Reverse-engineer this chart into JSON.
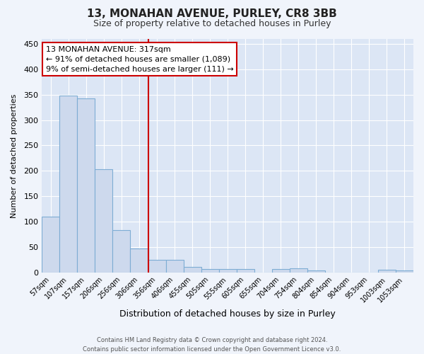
{
  "title1": "13, MONAHAN AVENUE, PURLEY, CR8 3BB",
  "title2": "Size of property relative to detached houses in Purley",
  "xlabel": "Distribution of detached houses by size in Purley",
  "ylabel": "Number of detached properties",
  "categories": [
    "57sqm",
    "107sqm",
    "157sqm",
    "206sqm",
    "256sqm",
    "306sqm",
    "356sqm",
    "406sqm",
    "455sqm",
    "505sqm",
    "555sqm",
    "605sqm",
    "655sqm",
    "704sqm",
    "754sqm",
    "804sqm",
    "854sqm",
    "904sqm",
    "953sqm",
    "1003sqm",
    "1053sqm"
  ],
  "values": [
    110,
    349,
    343,
    203,
    83,
    47,
    25,
    24,
    11,
    7,
    7,
    6,
    0,
    6,
    8,
    4,
    0,
    0,
    0,
    5,
    4
  ],
  "bar_color": "#cdd9ed",
  "bar_edge_color": "#7eadd4",
  "plot_bg_color": "#dce6f5",
  "fig_bg_color": "#f0f4fb",
  "grid_color": "#ffffff",
  "vline_x": 5.5,
  "vline_color": "#cc0000",
  "annotation_line1": "13 MONAHAN AVENUE: 317sqm",
  "annotation_line2": "← 91% of detached houses are smaller (1,089)",
  "annotation_line3": "9% of semi-detached houses are larger (111) →",
  "annotation_box_color": "#ffffff",
  "annotation_box_edge": "#cc0000",
  "footer": "Contains HM Land Registry data © Crown copyright and database right 2024.\nContains public sector information licensed under the Open Government Licence v3.0.",
  "ylim": [
    0,
    460
  ],
  "yticks": [
    0,
    50,
    100,
    150,
    200,
    250,
    300,
    350,
    400,
    450
  ]
}
